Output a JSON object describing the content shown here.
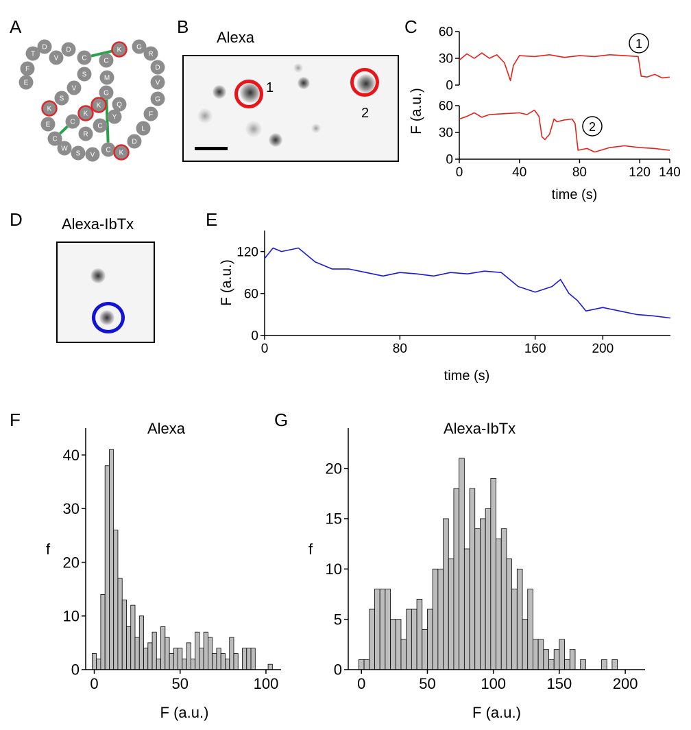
{
  "panels": {
    "a": {
      "label": "A"
    },
    "b": {
      "label": "B",
      "title": "Alexa",
      "roi1": "1",
      "roi2": "2"
    },
    "c": {
      "label": "C",
      "marker1": "1",
      "marker2": "2"
    },
    "d": {
      "label": "D",
      "title": "Alexa-IbTx"
    },
    "e": {
      "label": "E"
    },
    "f": {
      "label": "F",
      "title": "Alexa"
    },
    "g": {
      "label": "G",
      "title": "Alexa-IbTx"
    }
  },
  "peptide": {
    "residues": [
      {
        "aa": "F",
        "lys": false
      },
      {
        "aa": "T",
        "lys": false
      },
      {
        "aa": "D",
        "lys": false
      },
      {
        "aa": "V",
        "lys": false
      },
      {
        "aa": "D",
        "lys": false
      },
      {
        "aa": "C",
        "lys": false
      },
      {
        "aa": "S",
        "lys": false
      },
      {
        "aa": "V",
        "lys": false
      },
      {
        "aa": "S",
        "lys": false
      },
      {
        "aa": "K",
        "lys": true
      },
      {
        "aa": "E",
        "lys": false
      },
      {
        "aa": "C",
        "lys": false
      },
      {
        "aa": "W",
        "lys": false
      },
      {
        "aa": "S",
        "lys": false
      },
      {
        "aa": "V",
        "lys": false
      },
      {
        "aa": "C",
        "lys": false
      },
      {
        "aa": "K",
        "lys": true
      },
      {
        "aa": "D",
        "lys": false
      },
      {
        "aa": "L",
        "lys": false
      },
      {
        "aa": "F",
        "lys": false
      },
      {
        "aa": "G",
        "lys": false
      },
      {
        "aa": "V",
        "lys": false
      },
      {
        "aa": "D",
        "lys": false
      },
      {
        "aa": "R",
        "lys": false
      },
      {
        "aa": "G",
        "lys": false
      },
      {
        "aa": "K",
        "lys": true
      },
      {
        "aa": "C",
        "lys": false
      },
      {
        "aa": "M",
        "lys": false
      },
      {
        "aa": "G",
        "lys": false
      },
      {
        "aa": "K",
        "lys": true
      },
      {
        "aa": "K",
        "lys": true
      },
      {
        "aa": "C",
        "lys": false
      },
      {
        "aa": "R",
        "lys": false
      },
      {
        "aa": "C",
        "lys": false
      },
      {
        "aa": "Y",
        "lys": false
      },
      {
        "aa": "Q",
        "lys": false
      },
      {
        "aa": "E",
        "lys": false
      }
    ]
  },
  "colors": {
    "residue": "#8c8c8c",
    "lys_ring": "#e0262b",
    "disulfide": "#27a449",
    "trace_c": "#e3221c",
    "trace_e": "#1a1ad6",
    "roi_red": "#e8151b",
    "roi_blue": "#1313d4",
    "bar_fill": "#bdbdbd"
  },
  "axes": {
    "c": {
      "ylabel": "F (a.u.)",
      "xlabel": "time (s)",
      "yticks": [
        "0",
        "30",
        "60"
      ],
      "xticks": [
        "0",
        "40",
        "80",
        "120",
        "140"
      ]
    },
    "e": {
      "ylabel": "F (a.u.)",
      "xlabel": "time (s)",
      "yticks": [
        "0",
        "60",
        "120"
      ],
      "xticks": [
        "0",
        "80",
        "160",
        "200"
      ]
    },
    "f": {
      "ylabel": "f",
      "xlabel": "F (a.u.)",
      "yticks": [
        "0",
        "10",
        "20",
        "30",
        "40"
      ],
      "xticks": [
        "0",
        "50",
        "100"
      ]
    },
    "g": {
      "ylabel": "f",
      "xlabel": "F (a.u.)",
      "yticks": [
        "0",
        "5",
        "10",
        "15",
        "20"
      ],
      "xticks": [
        "0",
        "50",
        "100",
        "150",
        "200"
      ]
    }
  },
  "chart_data": [
    {
      "id": "c1",
      "type": "line",
      "xlim": [
        0,
        140
      ],
      "ylim": [
        0,
        60
      ],
      "x": [
        0,
        5,
        10,
        15,
        20,
        25,
        30,
        32,
        34,
        36,
        40,
        50,
        60,
        70,
        80,
        90,
        100,
        110,
        119,
        121,
        125,
        130,
        135,
        140
      ],
      "y": [
        28,
        35,
        30,
        36,
        30,
        34,
        25,
        15,
        5,
        22,
        33,
        32,
        34,
        31,
        33,
        32,
        34,
        33,
        32,
        10,
        9,
        12,
        8,
        9
      ]
    },
    {
      "id": "c2",
      "type": "line",
      "xlim": [
        0,
        140
      ],
      "ylim": [
        0,
        60
      ],
      "x": [
        0,
        5,
        10,
        15,
        20,
        30,
        40,
        45,
        50,
        53,
        55,
        57,
        60,
        63,
        65,
        70,
        75,
        77,
        79,
        85,
        90,
        100,
        110,
        120,
        130,
        140
      ],
      "y": [
        45,
        48,
        52,
        47,
        50,
        51,
        52,
        50,
        55,
        48,
        25,
        22,
        28,
        45,
        42,
        44,
        45,
        40,
        10,
        12,
        8,
        13,
        15,
        13,
        12,
        10
      ]
    },
    {
      "id": "e",
      "type": "line",
      "xlim": [
        0,
        240
      ],
      "ylim": [
        0,
        150
      ],
      "x": [
        0,
        5,
        10,
        20,
        30,
        40,
        50,
        60,
        70,
        80,
        90,
        100,
        110,
        120,
        130,
        140,
        150,
        160,
        170,
        175,
        180,
        185,
        190,
        200,
        210,
        220,
        230,
        240
      ],
      "y": [
        110,
        125,
        120,
        125,
        105,
        95,
        95,
        90,
        85,
        90,
        88,
        85,
        90,
        88,
        92,
        90,
        70,
        62,
        70,
        80,
        60,
        50,
        35,
        40,
        35,
        30,
        28,
        25
      ]
    },
    {
      "id": "f",
      "type": "bar",
      "xlim": [
        -5,
        110
      ],
      "ylim": [
        0,
        45
      ],
      "bin_width": 2.5,
      "bins": [
        0,
        2.5,
        5,
        7.5,
        10,
        12.5,
        15,
        17.5,
        20,
        22.5,
        25,
        27.5,
        30,
        32.5,
        35,
        37.5,
        40,
        42.5,
        45,
        47.5,
        50,
        52.5,
        55,
        57.5,
        60,
        62.5,
        65,
        67.5,
        70,
        72.5,
        75,
        77.5,
        80,
        82.5,
        85,
        87.5,
        90,
        92.5,
        95,
        97.5,
        100,
        102.5
      ],
      "values": [
        3,
        2,
        14,
        38,
        41,
        26,
        17,
        13,
        8,
        12,
        6,
        10,
        4,
        5,
        7,
        2,
        8,
        6,
        3,
        4,
        4,
        2,
        5,
        2,
        7,
        4,
        7,
        6,
        3,
        4,
        3,
        2,
        6,
        3,
        0,
        4,
        4,
        4,
        0,
        0,
        0,
        1
      ]
    },
    {
      "id": "g",
      "type": "bar",
      "xlim": [
        -10,
        215
      ],
      "ylim": [
        0,
        24
      ],
      "bin_width": 4,
      "bins": [
        0,
        4,
        8,
        12,
        16,
        20,
        24,
        28,
        32,
        36,
        40,
        44,
        48,
        52,
        56,
        60,
        64,
        68,
        72,
        76,
        80,
        84,
        88,
        92,
        96,
        100,
        104,
        108,
        112,
        116,
        120,
        124,
        128,
        132,
        136,
        140,
        144,
        148,
        152,
        156,
        160,
        164,
        168,
        172,
        176,
        180,
        184,
        188,
        192,
        196
      ],
      "values": [
        1,
        1,
        6,
        8,
        8,
        8,
        5,
        5,
        3,
        6,
        6,
        7,
        4,
        6,
        10,
        10,
        15,
        11,
        18,
        21,
        12,
        18,
        14,
        15,
        16,
        19,
        13,
        14,
        11,
        8,
        10,
        5,
        8,
        3,
        3,
        2,
        1,
        2,
        3,
        1,
        2,
        0,
        1,
        0,
        0,
        0,
        1,
        0,
        1,
        0
      ]
    }
  ]
}
